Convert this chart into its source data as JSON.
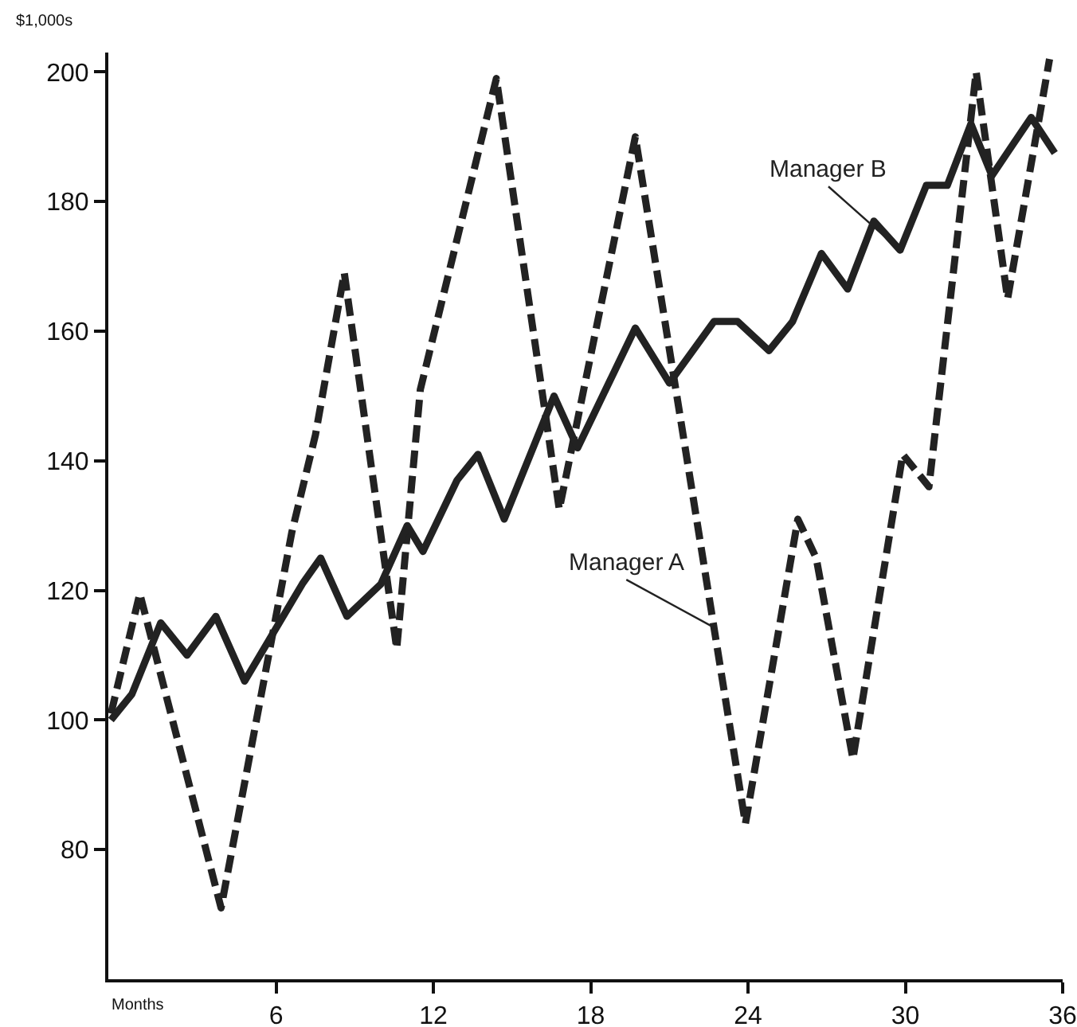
{
  "chart_data": {
    "type": "line",
    "xlabel": "Months",
    "ylabel": "$1,000s",
    "xlim": [
      -0.4,
      36
    ],
    "xticks": [
      6,
      12,
      18,
      24,
      30,
      36
    ],
    "ylim": [
      60,
      203
    ],
    "yticks": [
      80,
      100,
      120,
      140,
      160,
      180,
      200
    ],
    "grid": false,
    "legend": false,
    "marker": "none",
    "series": [
      {
        "name": "Manager A",
        "color": "#222222",
        "line_style": "dashed",
        "x": [
          -0.3,
          0.8,
          3.9,
          6.6,
          7.5,
          8.6,
          10.6,
          11.5,
          14.4,
          16.8,
          19.7,
          23.9,
          25.9,
          26.6,
          28,
          29.9,
          30.9,
          32.7,
          33.9,
          35.5
        ],
        "values": [
          101,
          119.5,
          71,
          129,
          144,
          169,
          111,
          151,
          199,
          132.5,
          190,
          84,
          131,
          125,
          94,
          141,
          136,
          200,
          165,
          202
        ]
      },
      {
        "name": "Manager B",
        "color": "#222222",
        "line_style": "solid",
        "x": [
          -0.3,
          0.5,
          1.6,
          2.6,
          3.7,
          4.8,
          7,
          7.7,
          8.7,
          10,
          11,
          11.6,
          12.9,
          13.7,
          14.7,
          16.6,
          17.5,
          19.7,
          21,
          22.7,
          23.6,
          24.8,
          25.7,
          26.8,
          27.8,
          28.8,
          29.8,
          30.8,
          31.6,
          32.5,
          33.3,
          34.8,
          35.7
        ],
        "values": [
          100,
          104,
          115,
          110,
          116,
          106,
          121,
          125,
          116,
          121,
          130,
          126,
          137,
          141,
          131,
          150,
          142,
          160.5,
          152,
          161.5,
          161.5,
          157,
          161.5,
          172,
          166.5,
          177,
          172.5,
          182.5,
          182.5,
          192,
          184,
          193,
          187.5
        ]
      }
    ]
  }
}
